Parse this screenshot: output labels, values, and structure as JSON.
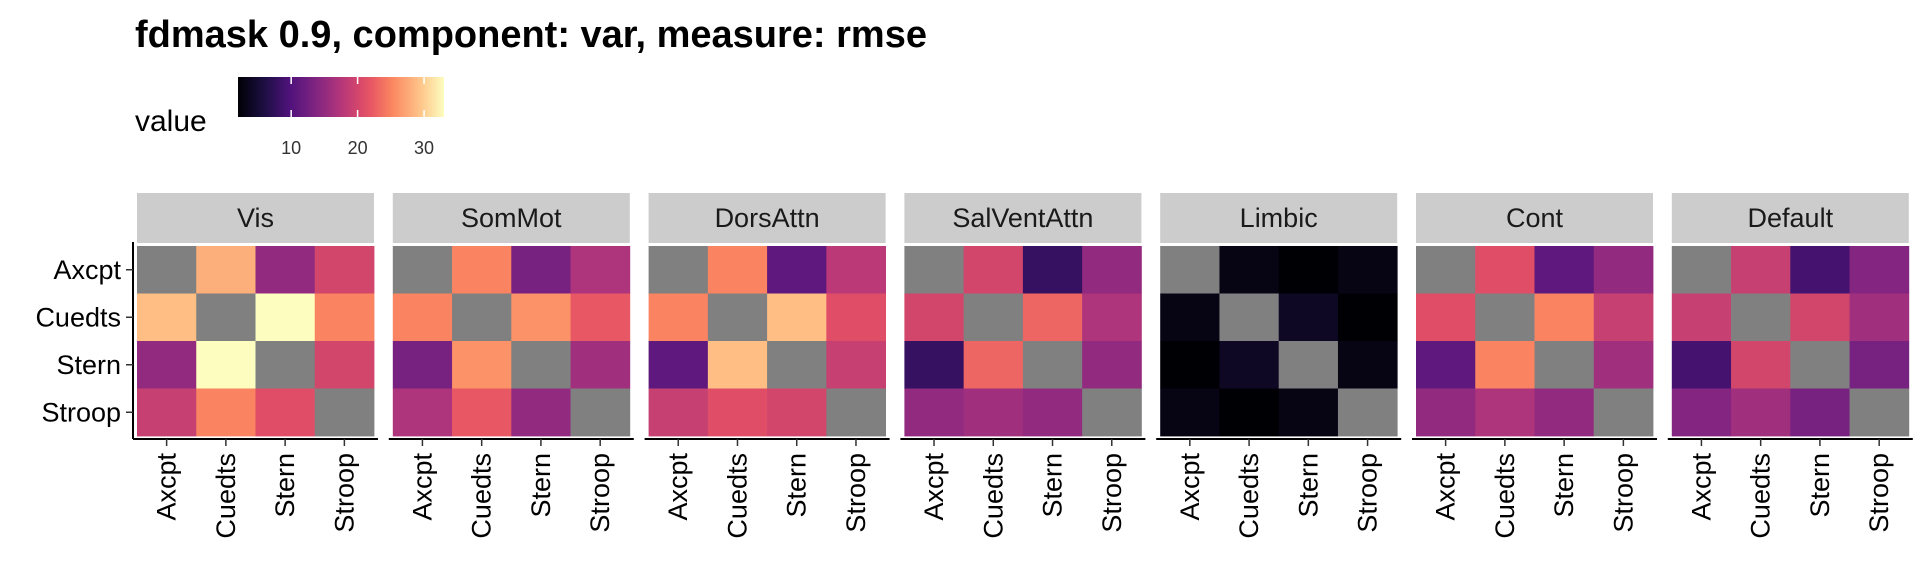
{
  "chart_data": {
    "type": "heatmap",
    "title": "fdmask 0.9, component: var, measure: rmse",
    "legend": {
      "title": "value",
      "ticks": [
        10,
        20,
        30
      ],
      "range": [
        2,
        33
      ],
      "palette": "magma",
      "placement": "top-left"
    },
    "rows": [
      "Axcpt",
      "Cuedts",
      "Stern",
      "Stroop"
    ],
    "columns": [
      "Axcpt",
      "Cuedts",
      "Stern",
      "Stroop"
    ],
    "na_color": "#808080",
    "panels": [
      {
        "name": "Vis",
        "values": [
          [
            null,
            28,
            15,
            20
          ],
          [
            29,
            null,
            33,
            25
          ],
          [
            15,
            33,
            null,
            20
          ],
          [
            19,
            25,
            21,
            null
          ]
        ]
      },
      {
        "name": "SomMot",
        "values": [
          [
            null,
            25,
            13,
            17
          ],
          [
            25,
            null,
            26,
            22
          ],
          [
            13,
            26,
            null,
            16
          ],
          [
            17,
            22,
            15,
            null
          ]
        ]
      },
      {
        "name": "DorsAttn",
        "values": [
          [
            null,
            25,
            11,
            18
          ],
          [
            25,
            null,
            29,
            21
          ],
          [
            11,
            29,
            null,
            19
          ],
          [
            19,
            21,
            20,
            null
          ]
        ]
      },
      {
        "name": "SalVentAttn",
        "values": [
          [
            null,
            20,
            8,
            15
          ],
          [
            20,
            null,
            23,
            17
          ],
          [
            8,
            23,
            null,
            15
          ],
          [
            15,
            16,
            15,
            null
          ]
        ]
      },
      {
        "name": "Limbic",
        "values": [
          [
            null,
            3,
            1,
            3
          ],
          [
            3,
            null,
            4,
            2
          ],
          [
            1,
            4,
            null,
            3
          ],
          [
            3,
            2,
            3,
            null
          ]
        ]
      },
      {
        "name": "Cont",
        "values": [
          [
            null,
            21,
            11,
            15
          ],
          [
            21,
            null,
            25,
            19
          ],
          [
            11,
            25,
            null,
            16
          ],
          [
            15,
            17,
            15,
            null
          ]
        ]
      },
      {
        "name": "Default",
        "values": [
          [
            null,
            19,
            9,
            14
          ],
          [
            19,
            null,
            20,
            16
          ],
          [
            9,
            20,
            null,
            13
          ],
          [
            14,
            16,
            13,
            null
          ]
        ]
      }
    ]
  }
}
